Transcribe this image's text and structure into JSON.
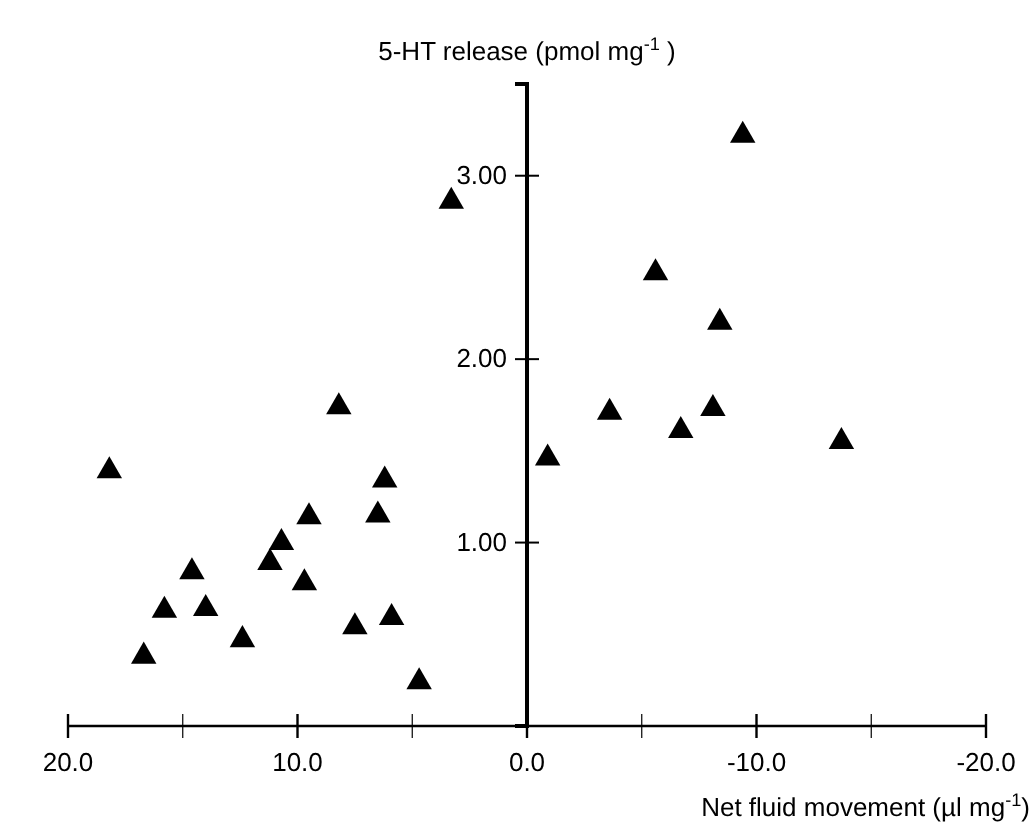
{
  "chart_data": {
    "type": "scatter",
    "ylabel": "5-HT release (pmol mg$^{-1}$ )",
    "xlabel": "Net fluid movement (µl mg$^{-1}$)",
    "x": [
      18.2,
      8.2,
      6.2,
      9.5,
      6.5,
      10.7,
      11.2,
      14.6,
      9.7,
      15.8,
      14.0,
      5.9,
      7.5,
      12.4,
      16.7,
      4.7,
      3.3,
      -9.4,
      -5.6,
      -8.4,
      -3.6,
      -8.1,
      -6.7,
      -13.7,
      -0.9
    ],
    "values": [
      1.39,
      1.74,
      1.34,
      1.14,
      1.15,
      1.0,
      0.89,
      0.84,
      0.78,
      0.63,
      0.64,
      0.59,
      0.54,
      0.47,
      0.38,
      0.24,
      2.86,
      3.22,
      2.47,
      2.2,
      1.71,
      1.73,
      1.61,
      1.55,
      1.46
    ],
    "color": "#000000",
    "marker": "triangle",
    "grid": false,
    "xlim": [
      20,
      -20
    ],
    "ylim": [
      0,
      3.5
    ],
    "xticks": [
      {
        "value": 20,
        "label": "20.0"
      },
      {
        "value": 15,
        "label": null
      },
      {
        "value": 10,
        "label": "10.0"
      },
      {
        "value": 5,
        "label": null
      },
      {
        "value": 0,
        "label": "0.0"
      },
      {
        "value": -5,
        "label": null
      },
      {
        "value": -10,
        "label": "-10.0"
      },
      {
        "value": -15,
        "label": null
      },
      {
        "value": -20,
        "label": "-20.0"
      }
    ],
    "yticks": [
      {
        "value": 1,
        "label": "1.00"
      },
      {
        "value": 2,
        "label": "2.00"
      },
      {
        "value": 3,
        "label": "3.00"
      }
    ]
  }
}
